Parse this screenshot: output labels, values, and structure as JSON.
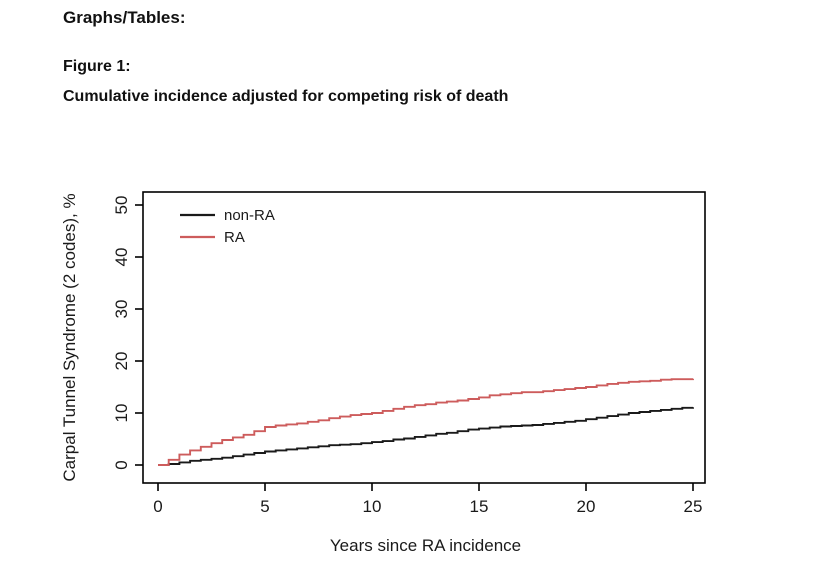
{
  "document": {
    "section_heading": "Graphs/Tables:",
    "figure_label": "Figure 1:",
    "figure_title": "Cumulative incidence adjusted for competing risk of death"
  },
  "chart_data": {
    "type": "line",
    "subtype": "step",
    "title": "",
    "xlabel": "Years since RA incidence",
    "ylabel": "Carpal Tunnel Syndrome (2 codes), %",
    "xlim": [
      0,
      25
    ],
    "ylim": [
      0,
      50
    ],
    "xticks": [
      0,
      5,
      10,
      15,
      20,
      25
    ],
    "yticks": [
      0,
      10,
      20,
      30,
      40,
      50
    ],
    "grid": "off",
    "legend": {
      "position": "top-left",
      "entries": [
        "non-RA",
        "RA"
      ]
    },
    "colors": {
      "non_RA": "#1a1a1a",
      "RA": "#cd5c5c",
      "axis": "#000000"
    },
    "x": [
      0,
      0.5,
      1,
      1.5,
      2,
      2.5,
      3,
      3.5,
      4,
      4.5,
      5,
      5.5,
      6,
      6.5,
      7,
      7.5,
      8,
      8.5,
      9,
      9.5,
      10,
      10.5,
      11,
      11.5,
      12,
      12.5,
      13,
      13.5,
      14,
      14.5,
      15,
      15.5,
      16,
      16.5,
      17,
      17.5,
      18,
      18.5,
      19,
      19.5,
      20,
      20.5,
      21,
      21.5,
      22,
      22.5,
      23,
      23.5,
      24,
      24.5,
      25
    ],
    "series": [
      {
        "name": "non-RA",
        "color": "#1a1a1a",
        "values": [
          0,
          0.2,
          0.5,
          0.8,
          1.0,
          1.2,
          1.4,
          1.7,
          2.0,
          2.3,
          2.6,
          2.8,
          3.0,
          3.2,
          3.4,
          3.6,
          3.8,
          3.9,
          4.0,
          4.2,
          4.4,
          4.6,
          4.9,
          5.1,
          5.4,
          5.7,
          6.0,
          6.2,
          6.5,
          6.8,
          7.0,
          7.2,
          7.4,
          7.5,
          7.6,
          7.7,
          7.9,
          8.1,
          8.3,
          8.5,
          8.8,
          9.1,
          9.4,
          9.7,
          10.0,
          10.2,
          10.4,
          10.6,
          10.8,
          11.0,
          11.1
        ]
      },
      {
        "name": "RA",
        "color": "#cd5c5c",
        "values": [
          0,
          1.0,
          2.0,
          2.8,
          3.5,
          4.2,
          4.8,
          5.3,
          5.8,
          6.5,
          7.3,
          7.6,
          7.8,
          8.0,
          8.3,
          8.6,
          9.0,
          9.3,
          9.6,
          9.8,
          10.0,
          10.4,
          10.8,
          11.2,
          11.5,
          11.7,
          12.0,
          12.2,
          12.4,
          12.7,
          13.0,
          13.4,
          13.6,
          13.8,
          14.0,
          14.0,
          14.2,
          14.4,
          14.6,
          14.8,
          15.0,
          15.3,
          15.6,
          15.8,
          16.0,
          16.1,
          16.2,
          16.4,
          16.5,
          16.5,
          16.6
        ]
      }
    ]
  }
}
